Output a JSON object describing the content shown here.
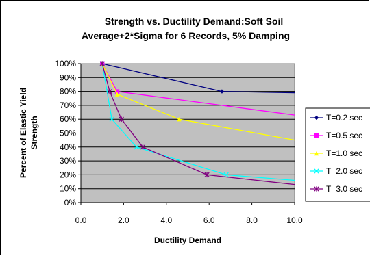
{
  "chart_data": {
    "type": "line",
    "title_lines": [
      "Strength vs. Ductility Demand:Soft Soil",
      "Average+2*Sigma for 6 Records, 5% Damping"
    ],
    "xlabel": "Ductility Demand",
    "ylabel_lines": [
      "Percent of Elastic Yield",
      "Strength"
    ],
    "xlim": [
      0,
      10
    ],
    "ylim": [
      0,
      100
    ],
    "x_ticks": [
      "0.0",
      "2.0",
      "4.0",
      "6.0",
      "8.0",
      "10.0"
    ],
    "y_ticks": [
      "0%",
      "10%",
      "20%",
      "30%",
      "40%",
      "50%",
      "60%",
      "70%",
      "80%",
      "90%",
      "100%"
    ],
    "plot_background": "#c0c0c0",
    "grid": "horizontal",
    "legend_position": "right",
    "series": [
      {
        "name": "T=0.2 sec",
        "color": "#000080",
        "marker": "diamond",
        "points": [
          [
            1.0,
            100
          ],
          [
            6.6,
            80
          ],
          [
            10.0,
            79
          ]
        ]
      },
      {
        "name": "T=0.5 sec",
        "color": "#ff00ff",
        "marker": "square",
        "points": [
          [
            1.0,
            100
          ],
          [
            1.7,
            80
          ],
          [
            10.0,
            63
          ]
        ]
      },
      {
        "name": "T=1.0 sec",
        "color": "#ffff00",
        "marker": "triangle",
        "points": [
          [
            1.0,
            100
          ],
          [
            1.7,
            78
          ],
          [
            4.6,
            60
          ],
          [
            10.0,
            45
          ]
        ]
      },
      {
        "name": "T=2.0 sec",
        "color": "#00ffff",
        "marker": "x",
        "points": [
          [
            1.0,
            100
          ],
          [
            1.45,
            60
          ],
          [
            2.6,
            40
          ],
          [
            6.8,
            20
          ],
          [
            10.0,
            16
          ]
        ]
      },
      {
        "name": "T=3.0 sec",
        "color": "#800080",
        "marker": "star",
        "points": [
          [
            1.0,
            100
          ],
          [
            1.35,
            80
          ],
          [
            1.9,
            60
          ],
          [
            2.9,
            40
          ],
          [
            5.9,
            20
          ],
          [
            10.0,
            13
          ]
        ]
      }
    ]
  }
}
